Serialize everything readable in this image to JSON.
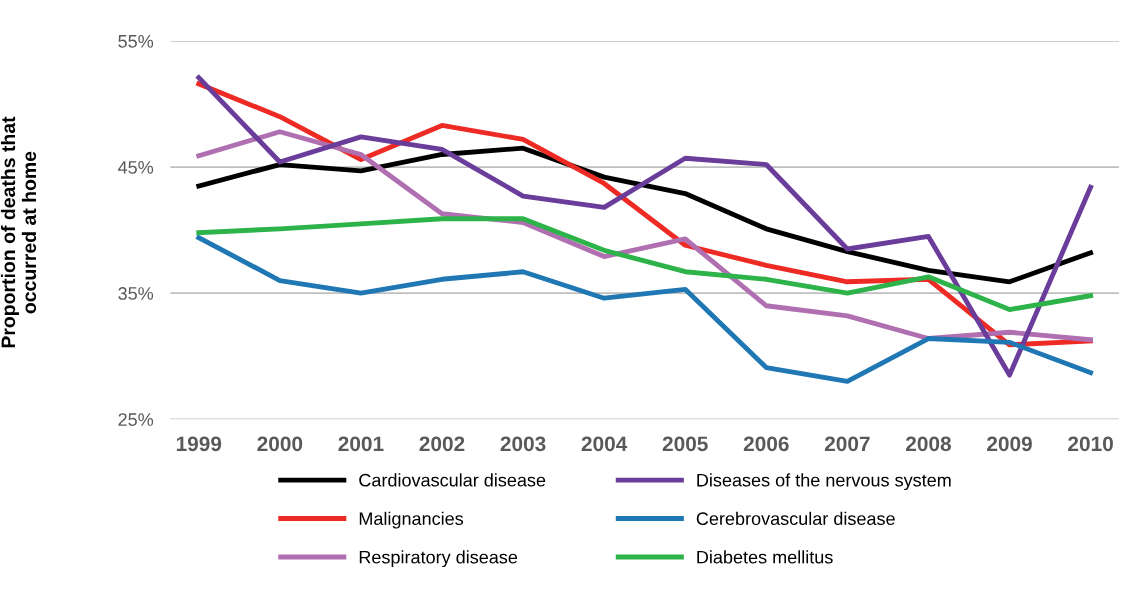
{
  "chart_data": {
    "type": "line",
    "ylabel": "Proportion of deaths that\noccurred at home",
    "categories": [
      "1999",
      "2000",
      "2001",
      "2002",
      "2003",
      "2004",
      "2005",
      "2006",
      "2007",
      "2008",
      "2009",
      "2010"
    ],
    "series": [
      {
        "name": "Cardiovascular disease",
        "color": "#000000",
        "values": [
          43.5,
          45.2,
          44.7,
          46.0,
          46.5,
          44.2,
          42.9,
          40.1,
          38.3,
          36.8,
          35.9,
          38.2
        ]
      },
      {
        "name": "Malignancies",
        "color": "#ee2a24",
        "values": [
          51.6,
          49.0,
          45.6,
          48.3,
          47.2,
          43.7,
          38.8,
          37.2,
          35.9,
          36.1,
          30.9,
          31.2
        ]
      },
      {
        "name": "Respiratory disease",
        "color": "#b06fb0",
        "values": [
          45.9,
          47.8,
          46.0,
          41.3,
          40.6,
          37.9,
          39.3,
          34.0,
          33.2,
          31.4,
          31.9,
          31.3
        ]
      },
      {
        "name": "Diseases of the nervous system",
        "color": "#6a3d9a",
        "values": [
          52.1,
          45.4,
          47.4,
          46.4,
          42.7,
          41.8,
          45.7,
          45.2,
          38.5,
          39.5,
          28.5,
          43.4
        ]
      },
      {
        "name": "Cerebrovascular disease",
        "color": "#1f77b4",
        "values": [
          39.4,
          36.0,
          35.0,
          36.1,
          36.7,
          34.6,
          35.3,
          29.1,
          28.0,
          31.4,
          31.1,
          28.7
        ]
      },
      {
        "name": "Diabetes mellitus",
        "color": "#2db34a",
        "values": [
          39.8,
          40.1,
          40.5,
          40.9,
          40.9,
          38.4,
          36.7,
          36.1,
          35.0,
          36.3,
          33.7,
          34.8
        ]
      }
    ],
    "ylim": [
      25,
      55
    ],
    "yticks": [
      {
        "value": 25,
        "label": "25%"
      },
      {
        "value": 35,
        "label": "35%"
      },
      {
        "value": 45,
        "label": "45%"
      },
      {
        "value": 55,
        "label": "55%"
      }
    ],
    "grid": "y",
    "legend": "bottom",
    "marker": "none",
    "line_style": "solid"
  }
}
